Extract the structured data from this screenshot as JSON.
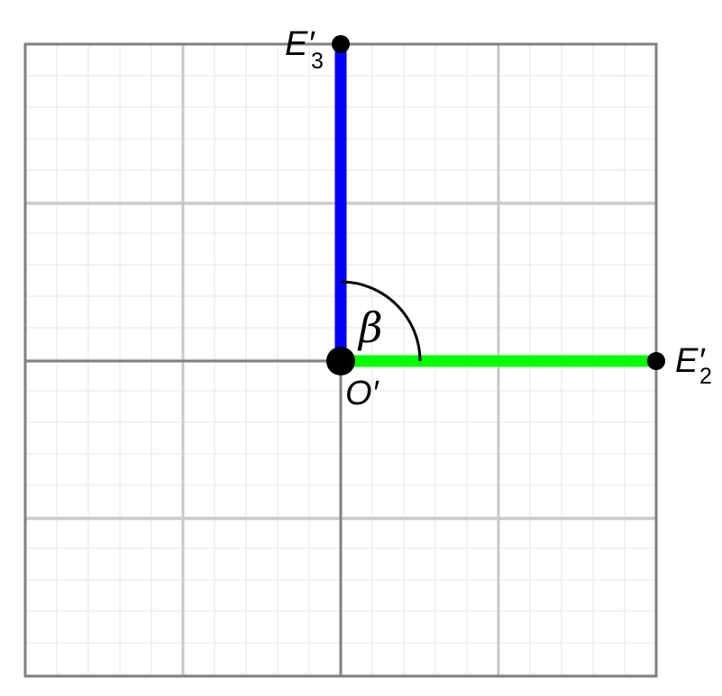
{
  "colors": {
    "grid_minor": "#e6e6e6",
    "grid_major": "#c8c8c8",
    "grid_axis": "#808080",
    "vector_e3": "#0000ff",
    "vector_e2": "#00ff00",
    "point": "#000000"
  },
  "labels": {
    "origin": "O′",
    "e3": "E′",
    "e3_sub": "3",
    "e2": "E′",
    "e2_sub": "2",
    "angle": "β"
  }
}
